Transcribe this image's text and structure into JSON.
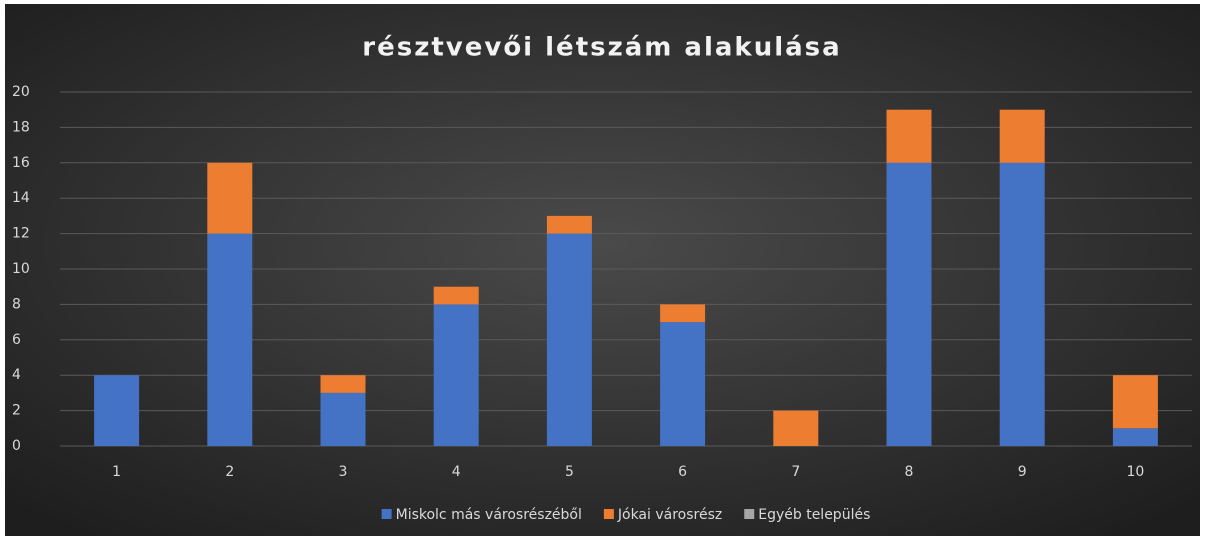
{
  "chart_data": {
    "type": "stacked_bar",
    "title": "résztvevői létszám alakulása",
    "categories": [
      "1",
      "2",
      "3",
      "4",
      "5",
      "6",
      "7",
      "8",
      "9",
      "10"
    ],
    "series": [
      {
        "name": "Miskolc más városrészéből",
        "color": "#4472c4",
        "values": [
          4,
          12,
          3,
          8,
          12,
          7,
          0,
          16,
          16,
          1
        ]
      },
      {
        "name": "Jókai városrész",
        "color": "#ed7d31",
        "values": [
          0,
          4,
          1,
          1,
          1,
          1,
          2,
          3,
          3,
          3
        ]
      },
      {
        "name": "Egyéb település",
        "color": "#a5a5a5",
        "values": [
          0,
          0,
          0,
          0,
          0,
          0,
          0,
          0,
          0,
          0
        ]
      }
    ],
    "ylim": [
      0,
      20
    ],
    "yticks": [
      0,
      2,
      4,
      6,
      8,
      10,
      12,
      14,
      16,
      18,
      20
    ],
    "grid": true,
    "legend": "bottom"
  }
}
